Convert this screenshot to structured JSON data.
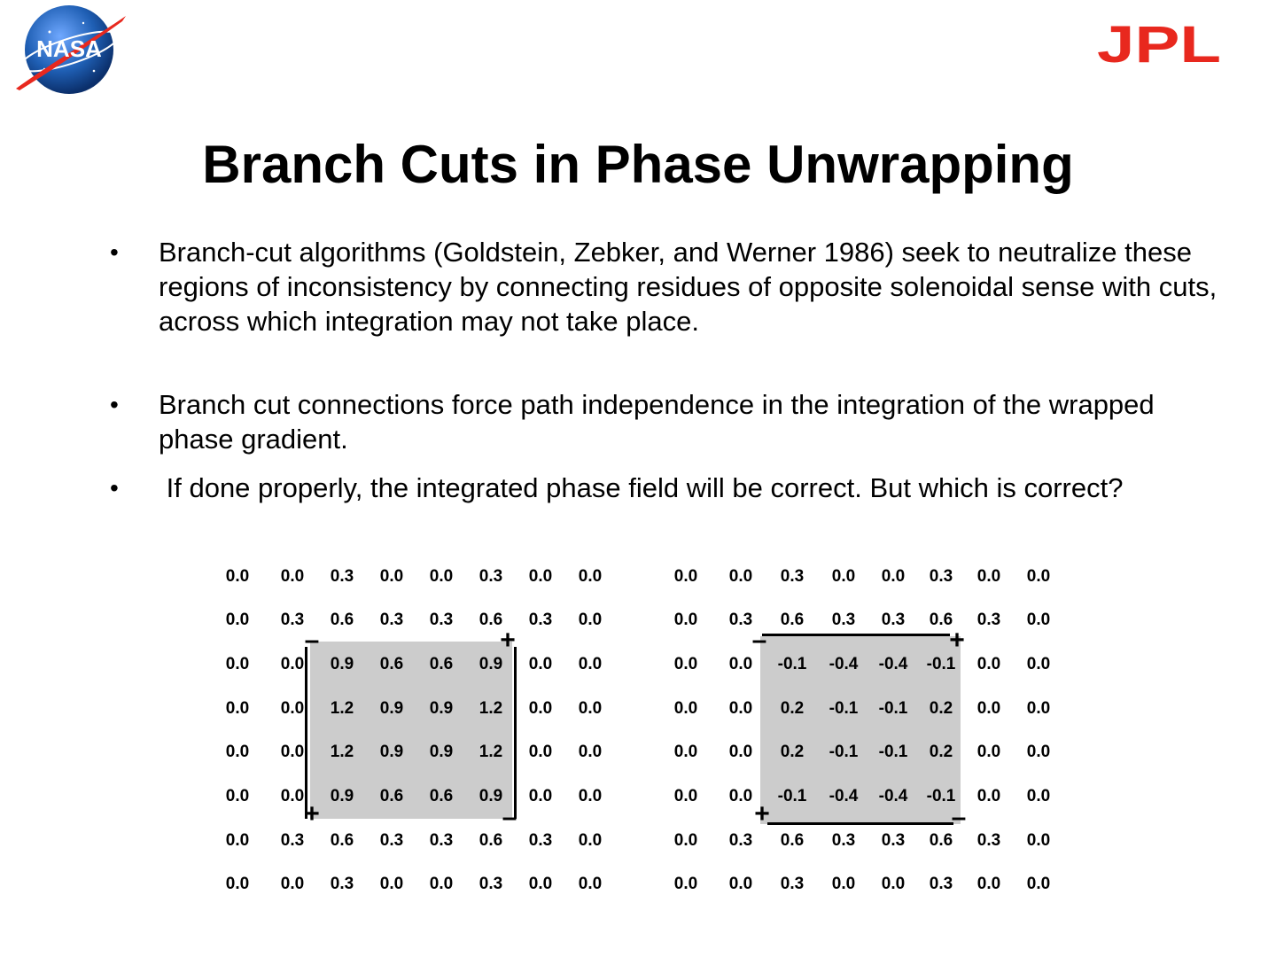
{
  "slide": {
    "title": "Branch Cuts in Phase Unwrapping",
    "bullets": [
      "Branch-cut algorithms (Goldstein, Zebker, and Werner 1986) seek to neutralize these regions of inconsistency by connecting residues of opposite solenoidal sense with cuts, across which integration may not take place.",
      "Branch cut connections force path independence in the integration of the wrapped phase gradient.",
      " If done properly, the integrated phase field will be correct. But which is correct?"
    ],
    "bullet_marker": "•"
  },
  "logos": {
    "nasa_text": "NASA",
    "jpl_text": "JPL"
  },
  "colors": {
    "jpl_red": "#e8281e",
    "nasa_blue": "#1f5fb4",
    "shade": "#cccccc"
  },
  "matrix_left": {
    "rows": [
      [
        "0.0",
        "0.0",
        "0.3",
        "0.0",
        "0.0",
        "0.3",
        "0.0",
        "0.0"
      ],
      [
        "0.0",
        "0.3",
        "0.6",
        "0.3",
        "0.3",
        "0.6",
        "0.3",
        "0.0"
      ],
      [
        "0.0",
        "0.0",
        "0.9",
        "0.6",
        "0.6",
        "0.9",
        "0.0",
        "0.0"
      ],
      [
        "0.0",
        "0.0",
        "1.2",
        "0.9",
        "0.9",
        "1.2",
        "0.0",
        "0.0"
      ],
      [
        "0.0",
        "0.0",
        "1.2",
        "0.9",
        "0.9",
        "1.2",
        "0.0",
        "0.0"
      ],
      [
        "0.0",
        "0.0",
        "0.9",
        "0.6",
        "0.6",
        "0.9",
        "0.0",
        "0.0"
      ],
      [
        "0.0",
        "0.3",
        "0.6",
        "0.3",
        "0.3",
        "0.6",
        "0.3",
        "0.0"
      ],
      [
        "0.0",
        "0.0",
        "0.3",
        "0.0",
        "0.0",
        "0.3",
        "0.0",
        "0.0"
      ]
    ],
    "signs": {
      "top_left": "–",
      "top_right": "+",
      "bottom_left": "+",
      "bottom_right": "–"
    }
  },
  "matrix_right": {
    "rows": [
      [
        "0.0",
        "0.0",
        "0.3",
        "0.0",
        "0.0",
        "0.3",
        "0.0",
        "0.0"
      ],
      [
        "0.0",
        "0.3",
        "0.6",
        "0.3",
        "0.3",
        "0.6",
        "0.3",
        "0.0"
      ],
      [
        "0.0",
        "0.0",
        "-0.1",
        "-0.4",
        "-0.4",
        "-0.1",
        "0.0",
        "0.0"
      ],
      [
        "0.0",
        "0.0",
        "0.2",
        "-0.1",
        "-0.1",
        "0.2",
        "0.0",
        "0.0"
      ],
      [
        "0.0",
        "0.0",
        "0.2",
        "-0.1",
        "-0.1",
        "0.2",
        "0.0",
        "0.0"
      ],
      [
        "0.0",
        "0.0",
        "-0.1",
        "-0.4",
        "-0.4",
        "-0.1",
        "0.0",
        "0.0"
      ],
      [
        "0.0",
        "0.3",
        "0.6",
        "0.3",
        "0.3",
        "0.6",
        "0.3",
        "0.0"
      ],
      [
        "0.0",
        "0.0",
        "0.3",
        "0.0",
        "0.0",
        "0.3",
        "0.0",
        "0.0"
      ]
    ],
    "signs": {
      "top_left": "–",
      "top_right": "+",
      "bottom_left": "+",
      "bottom_right": "–"
    }
  }
}
